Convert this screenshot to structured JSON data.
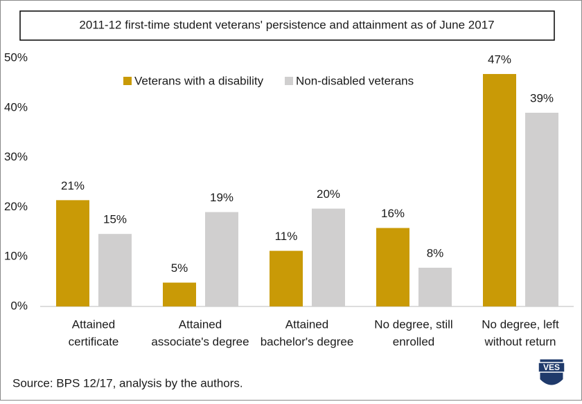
{
  "chart_data": {
    "type": "bar",
    "title": "2011-12 first-time student veterans' persistence and attainment  as of June 2017",
    "categories": [
      [
        "Attained",
        "certificate"
      ],
      [
        "Attained",
        "associate's degree"
      ],
      [
        "Attained",
        "bachelor's degree"
      ],
      [
        "No degree, still",
        "enrolled"
      ],
      [
        "No degree, left",
        "without return"
      ]
    ],
    "series": [
      {
        "name": "Veterans with a disability",
        "color": "#c99a06",
        "values": [
          21.4,
          4.8,
          11.2,
          15.8,
          46.8
        ],
        "value_labels": [
          "21%",
          "5%",
          "11%",
          "16%",
          "47%"
        ]
      },
      {
        "name": "Non-disabled veterans",
        "color": "#d0cfcf",
        "values": [
          14.6,
          19.0,
          19.7,
          7.8,
          39.0
        ],
        "value_labels": [
          "15%",
          "19%",
          "20%",
          "8%",
          "39%"
        ]
      }
    ],
    "ylim": [
      0,
      50
    ],
    "yticks": [
      {
        "value": 0,
        "label": "0%"
      },
      {
        "value": 10,
        "label": "10%"
      },
      {
        "value": 20,
        "label": "20%"
      },
      {
        "value": 30,
        "label": "30%"
      },
      {
        "value": 40,
        "label": "40%"
      },
      {
        "value": 50,
        "label": "50%"
      }
    ],
    "grid": false,
    "legend": "top",
    "source": "Source: BPS 12/17, analysis by the authors."
  },
  "logo": {
    "text": "VES"
  }
}
